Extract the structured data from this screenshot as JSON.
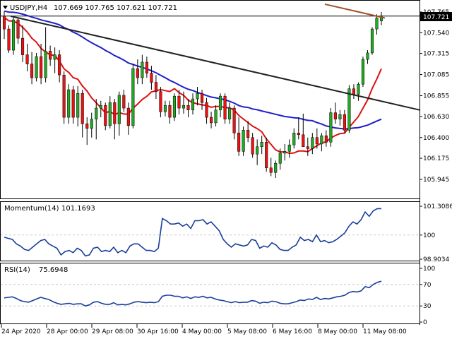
{
  "header": {
    "symbol_line": "USDJPY,H4",
    "ohlc": "107.669 107.765 107.621 107.721"
  },
  "colors": {
    "bull": "#22aa22",
    "bear": "#ee1111",
    "ma_blue": "#1f1fcc",
    "ma_red": "#dd1111",
    "trendline": "#222222",
    "upper_line": "#a0522d",
    "indicator": "#1a3e9a",
    "grid": "#c8c8c8",
    "price_box": "#000000"
  },
  "chart_data": [
    {
      "type": "candlestick",
      "title": "USDJPY,H4",
      "yticks": [
        "107.765",
        "107.540",
        "107.315",
        "107.085",
        "106.855",
        "106.630",
        "106.400",
        "106.175",
        "105.945"
      ],
      "ylim": [
        105.945,
        107.765
      ],
      "current_price": "107.721",
      "xticks": [
        "24 Apr 2020",
        "28 Apr 00:00",
        "29 Apr 08:00",
        "30 Apr 16:00",
        "4 May 00:00",
        "5 May 08:00",
        "6 May 16:00",
        "8 May 00:00",
        "11 May 08:00"
      ],
      "candles": [
        [
          107.72,
          107.77,
          107.47,
          107.58
        ],
        [
          107.58,
          107.62,
          107.32,
          107.35
        ],
        [
          107.35,
          107.72,
          107.3,
          107.68
        ],
        [
          107.68,
          107.7,
          107.42,
          107.48
        ],
        [
          107.48,
          107.62,
          107.22,
          107.3
        ],
        [
          107.3,
          107.42,
          107.12,
          107.2
        ],
        [
          107.2,
          107.33,
          106.98,
          107.05
        ],
        [
          107.05,
          107.32,
          107.01,
          107.28
        ],
        [
          107.28,
          107.42,
          106.98,
          107.05
        ],
        [
          107.05,
          107.6,
          107.0,
          107.34
        ],
        [
          107.34,
          107.4,
          107.18,
          107.25
        ],
        [
          107.25,
          107.38,
          107.1,
          107.3
        ],
        [
          107.3,
          107.35,
          107.0,
          107.08
        ],
        [
          107.08,
          107.12,
          106.55,
          106.62
        ],
        [
          106.62,
          106.98,
          106.55,
          106.92
        ],
        [
          106.92,
          106.96,
          106.55,
          106.62
        ],
        [
          106.62,
          106.96,
          106.52,
          106.88
        ],
        [
          106.88,
          106.92,
          106.4,
          106.55
        ],
        [
          106.55,
          106.62,
          106.32,
          106.5
        ],
        [
          106.5,
          106.67,
          106.4,
          106.6
        ],
        [
          106.6,
          106.82,
          106.38,
          106.72
        ],
        [
          106.72,
          106.8,
          106.62,
          106.75
        ],
        [
          106.75,
          106.78,
          106.48,
          106.53
        ],
        [
          106.53,
          106.85,
          106.5,
          106.78
        ],
        [
          106.78,
          106.82,
          106.38,
          106.55
        ],
        [
          106.55,
          106.9,
          106.42,
          106.86
        ],
        [
          106.86,
          106.92,
          106.68,
          106.72
        ],
        [
          106.72,
          106.78,
          106.43,
          106.53
        ],
        [
          106.53,
          107.2,
          106.5,
          107.15
        ],
        [
          107.15,
          107.25,
          106.98,
          107.05
        ],
        [
          107.05,
          107.3,
          106.98,
          107.22
        ],
        [
          107.22,
          107.28,
          107.05,
          107.1
        ],
        [
          107.1,
          107.18,
          106.92,
          107.0
        ],
        [
          107.0,
          107.08,
          106.82,
          106.9
        ],
        [
          106.9,
          106.95,
          106.62,
          106.68
        ],
        [
          106.68,
          106.8,
          106.63,
          106.75
        ],
        [
          106.75,
          106.8,
          106.55,
          106.62
        ],
        [
          106.62,
          106.88,
          106.58,
          106.85
        ],
        [
          106.85,
          106.92,
          106.65,
          106.72
        ],
        [
          106.72,
          106.9,
          106.66,
          106.75
        ],
        [
          106.75,
          106.82,
          106.62,
          106.7
        ],
        [
          106.7,
          106.88,
          106.65,
          106.82
        ],
        [
          106.82,
          106.95,
          106.75,
          106.88
        ],
        [
          106.88,
          106.92,
          106.7,
          106.78
        ],
        [
          106.78,
          106.83,
          106.55,
          106.62
        ],
        [
          106.62,
          106.68,
          106.5,
          106.56
        ],
        [
          106.56,
          106.75,
          106.52,
          106.7
        ],
        [
          106.7,
          106.88,
          106.62,
          106.85
        ],
        [
          106.85,
          106.88,
          106.55,
          106.6
        ],
        [
          106.6,
          106.78,
          106.55,
          106.72
        ],
        [
          106.72,
          106.75,
          106.38,
          106.45
        ],
        [
          106.45,
          106.62,
          106.2,
          106.25
        ],
        [
          106.25,
          106.52,
          106.2,
          106.48
        ],
        [
          106.48,
          106.58,
          106.35,
          106.4
        ],
        [
          106.4,
          106.45,
          106.18,
          106.22
        ],
        [
          106.22,
          106.38,
          106.1,
          106.3
        ],
        [
          106.3,
          106.42,
          106.22,
          106.35
        ],
        [
          106.35,
          106.4,
          106.03,
          106.07
        ],
        [
          106.07,
          106.18,
          105.98,
          106.02
        ],
        [
          106.02,
          106.15,
          105.96,
          106.12
        ],
        [
          106.12,
          106.28,
          106.05,
          106.23
        ],
        [
          106.23,
          106.33,
          106.15,
          106.25
        ],
        [
          106.25,
          106.38,
          106.18,
          106.32
        ],
        [
          106.32,
          106.5,
          106.28,
          106.45
        ],
        [
          106.45,
          106.62,
          106.38,
          106.43
        ],
        [
          106.43,
          106.66,
          106.3,
          106.3
        ],
        [
          106.3,
          106.4,
          106.2,
          106.28
        ],
        [
          106.28,
          106.45,
          106.22,
          106.4
        ],
        [
          106.4,
          106.5,
          106.28,
          106.33
        ],
        [
          106.33,
          106.45,
          106.25,
          106.42
        ],
        [
          106.42,
          106.48,
          106.3,
          106.35
        ],
        [
          106.35,
          106.72,
          106.3,
          106.67
        ],
        [
          106.67,
          106.78,
          106.55,
          106.6
        ],
        [
          106.6,
          106.7,
          106.53,
          106.65
        ],
        [
          106.65,
          106.7,
          106.45,
          106.48
        ],
        [
          106.48,
          106.97,
          106.45,
          106.93
        ],
        [
          106.93,
          106.98,
          106.82,
          106.87
        ],
        [
          106.87,
          107.0,
          106.8,
          106.98
        ],
        [
          106.98,
          107.28,
          106.95,
          107.25
        ],
        [
          107.25,
          107.35,
          107.2,
          107.32
        ],
        [
          107.32,
          107.6,
          107.3,
          107.58
        ],
        [
          107.58,
          107.74,
          107.52,
          107.7
        ],
        [
          107.669,
          107.765,
          107.621,
          107.721
        ]
      ]
    },
    {
      "type": "line",
      "title": "Momentum(14)",
      "current": "101.1693",
      "yticks": [
        "101.3086",
        "100",
        "98.9034"
      ],
      "ylim": [
        98.9034,
        101.3086
      ],
      "values": [
        99.9,
        99.85,
        99.8,
        99.6,
        99.5,
        99.35,
        99.3,
        99.45,
        99.6,
        99.75,
        99.8,
        99.6,
        99.5,
        99.4,
        99.1,
        99.25,
        99.3,
        99.2,
        99.4,
        99.3,
        99.05,
        99.1,
        99.4,
        99.45,
        99.25,
        99.3,
        99.25,
        99.45,
        99.2,
        99.3,
        99.2,
        99.5,
        99.6,
        99.6,
        99.45,
        99.3,
        99.3,
        99.25,
        99.4,
        100.75,
        100.65,
        100.5,
        100.5,
        100.55,
        100.4,
        100.5,
        100.3,
        100.65,
        100.65,
        100.7,
        100.5,
        100.6,
        100.4,
        100.2,
        99.8,
        99.6,
        99.45,
        99.6,
        99.55,
        99.5,
        99.55,
        99.8,
        99.75,
        99.4,
        99.5,
        99.45,
        99.65,
        99.55,
        99.35,
        99.3,
        99.3,
        99.45,
        99.55,
        99.9,
        99.75,
        99.8,
        99.7,
        100.0,
        99.7,
        99.75,
        99.65,
        99.7,
        99.8,
        99.95,
        100.1,
        100.4,
        100.6,
        100.5,
        100.7,
        101.05,
        100.85,
        101.1,
        101.2,
        101.2
      ]
    },
    {
      "type": "line",
      "title": "RSI(14)",
      "current": "75.6948",
      "yticks": [
        "100",
        "70",
        "30",
        "0"
      ],
      "ylim": [
        0,
        100
      ],
      "values": [
        45,
        46,
        47,
        44,
        40,
        38,
        37,
        40,
        43,
        46,
        44,
        42,
        38,
        35,
        33,
        34,
        35,
        33,
        34,
        34,
        30,
        32,
        37,
        38,
        35,
        33,
        33,
        36,
        32,
        33,
        32,
        34,
        37,
        38,
        37,
        36,
        37,
        36,
        38,
        48,
        50,
        50,
        48,
        48,
        45,
        47,
        44,
        47,
        46,
        48,
        45,
        46,
        43,
        41,
        40,
        38,
        36,
        38,
        36,
        37,
        37,
        40,
        39,
        35,
        37,
        36,
        39,
        38,
        35,
        34,
        34,
        36,
        38,
        41,
        40,
        43,
        42,
        46,
        42,
        44,
        43,
        45,
        47,
        48,
        50,
        55,
        57,
        56,
        58,
        66,
        64,
        70,
        74,
        76
      ]
    }
  ]
}
